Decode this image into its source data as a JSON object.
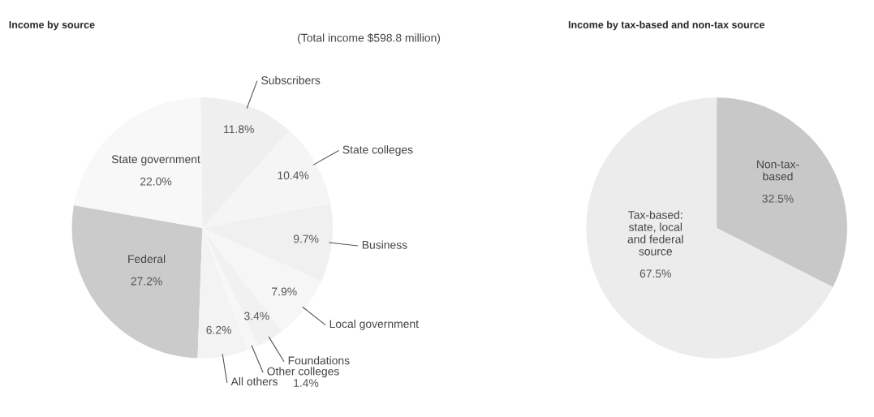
{
  "chart_data": [
    {
      "type": "pie",
      "title": "Income by source",
      "subtitle": "(Total income $598.8 million)",
      "categories": [
        "Federal",
        "All others",
        "Other colleges",
        "Foundations",
        "Local government",
        "Business",
        "State colleges",
        "Subscribers",
        "State government"
      ],
      "values": [
        27.2,
        6.2,
        1.4,
        3.4,
        7.9,
        9.7,
        10.4,
        11.8,
        22.0
      ],
      "colors": [
        "#cbcbcb",
        "#f3f3f3",
        "#f7f7f7",
        "#f1f1f1",
        "#f6f6f6",
        "#f0f0f0",
        "#f5f5f5",
        "#efefef",
        "#f8f8f8"
      ],
      "value_labels": [
        "27.2%",
        "6.2%",
        "1.4%",
        "3.4%",
        "7.9%",
        "9.7%",
        "10.4%",
        "11.8%",
        "22.0%"
      ],
      "legend": false
    },
    {
      "type": "pie",
      "title": "Income by tax-based and non-tax source",
      "categories": [
        "Non-tax-\nbased",
        "Tax-based:\nstate, local\nand federal\nsource"
      ],
      "values": [
        32.5,
        67.5
      ],
      "colors": [
        "#c8c8c8",
        "#ececec"
      ],
      "value_labels": [
        "32.5%",
        "67.5%"
      ],
      "legend": false
    }
  ]
}
